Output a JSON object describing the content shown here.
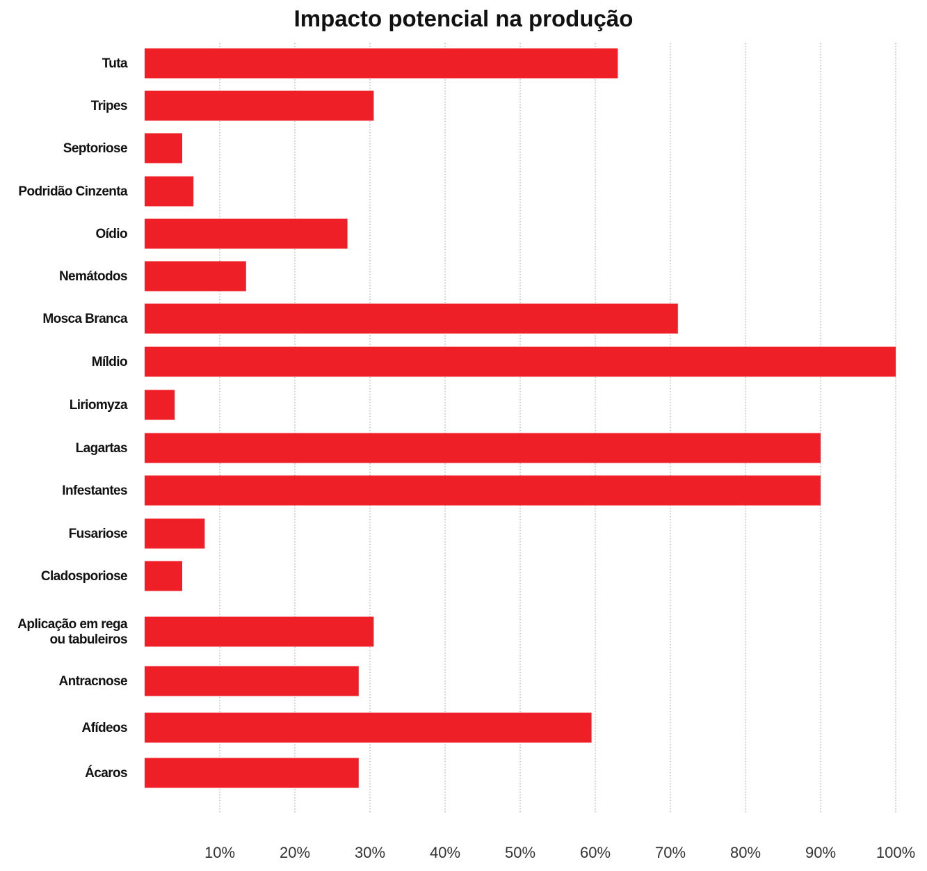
{
  "chart_data": {
    "type": "bar",
    "orientation": "horizontal",
    "title": "Impacto potencial na produção",
    "xlabel": "",
    "ylabel": "",
    "xlim": [
      0,
      100
    ],
    "x_ticks": [
      "10%",
      "20%",
      "30%",
      "40%",
      "50%",
      "60%",
      "70%",
      "80%",
      "90%",
      "100%"
    ],
    "grid": "vertical dotted",
    "bar_color": "#ee1f26",
    "categories": [
      "Tuta",
      "Tripes",
      "Septoriose",
      "Podridão Cinzenta",
      "Oídio",
      "Nemátodos",
      "Mosca Branca",
      "Míldio",
      "Liriomyza",
      "Lagartas",
      "Infestantes",
      "Fusariose",
      "Cladosporiose",
      "Aplicação em rega ou tabuleiros",
      "Antracnose",
      "Afídeos",
      "Ácaros"
    ],
    "category_label_lines": [
      [
        "Tuta"
      ],
      [
        "Tripes"
      ],
      [
        "Septoriose"
      ],
      [
        "Podridão Cinzenta"
      ],
      [
        "Oídio"
      ],
      [
        "Nemátodos"
      ],
      [
        "Mosca Branca"
      ],
      [
        "Míldio"
      ],
      [
        "Liriomyza"
      ],
      [
        "Lagartas"
      ],
      [
        "Infestantes"
      ],
      [
        "Fusariose"
      ],
      [
        "Cladosporiose"
      ],
      [
        "Aplicação em rega",
        "ou tabuleiros"
      ],
      [
        "Antracnose"
      ],
      [
        "Afídeos"
      ],
      [
        "Ácaros"
      ]
    ],
    "values": [
      63,
      30.5,
      5,
      6.5,
      27,
      13.5,
      71,
      100,
      4,
      90,
      90,
      8,
      5,
      30.5,
      28.5,
      59.5,
      28.5
    ]
  }
}
